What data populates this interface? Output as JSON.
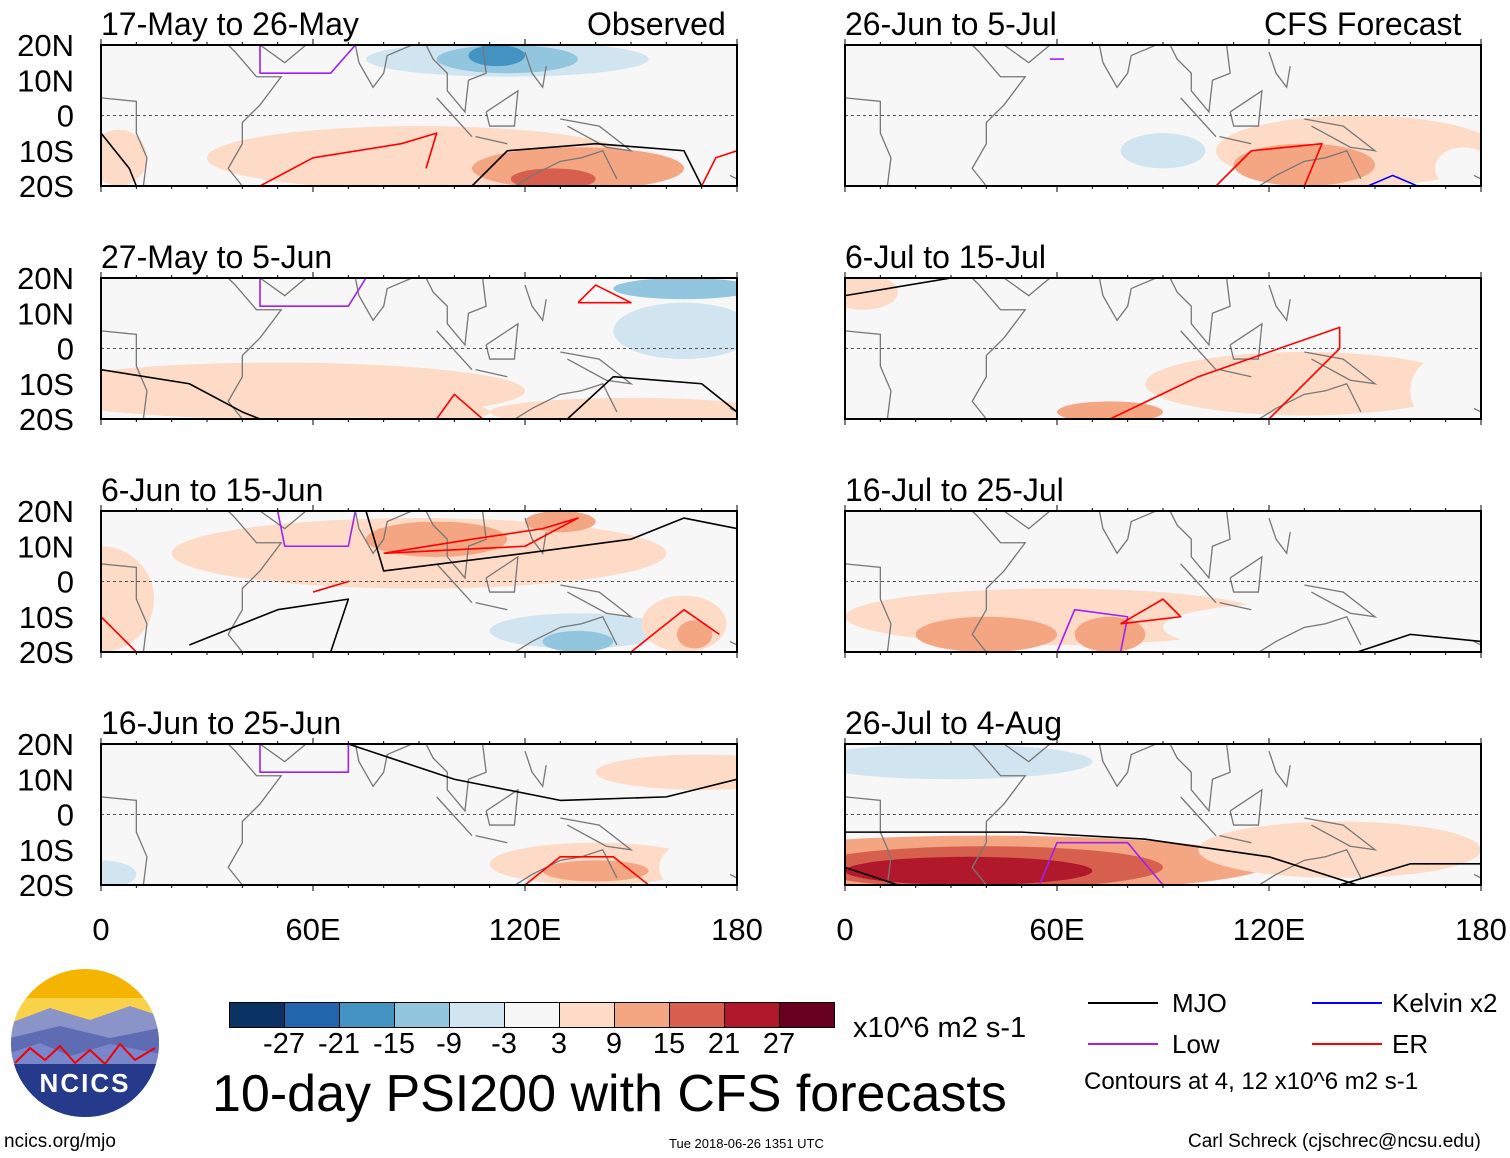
{
  "chart_data": {
    "type": "heatmap",
    "title": "10-day PSI200 with CFS forecasts",
    "units": "x10^6 m2 s-1",
    "xlim": [
      0,
      180
    ],
    "ylim": [
      -20,
      20
    ],
    "xticks": [
      "0",
      "60E",
      "120E",
      "180"
    ],
    "yticks": [
      "20N",
      "10N",
      "0",
      "10S",
      "20S"
    ],
    "levels": [
      -27,
      -21,
      -15,
      -9,
      -3,
      3,
      9,
      15,
      21,
      27
    ],
    "level_labels": [
      "-27",
      "-21",
      "-15",
      "-9",
      "-3",
      "3",
      "9",
      "15",
      "21",
      "27"
    ],
    "colors": [
      "#0a3263",
      "#2166ac",
      "#4393c3",
      "#92c5de",
      "#d1e5f0",
      "#f7f7f7",
      "#fddbc7",
      "#f4a582",
      "#d6604d",
      "#b2182b",
      "#67001f"
    ],
    "column_labels": [
      "Observed",
      "CFS Forecast"
    ],
    "panels": [
      {
        "title": "17-May to 26-May",
        "col": 0,
        "row": 0,
        "anoms": [
          [
            120,
            16,
            80,
            6,
            -3
          ],
          [
            115,
            16,
            40,
            5,
            -9
          ],
          [
            115,
            16,
            20,
            4,
            -15
          ],
          [
            112,
            17,
            8,
            3,
            -21
          ],
          [
            90,
            -12,
            60,
            9,
            3
          ],
          [
            135,
            -15,
            30,
            6,
            9
          ],
          [
            128,
            -18,
            12,
            3,
            15
          ],
          [
            5,
            -12,
            8,
            8,
            3
          ]
        ],
        "contours": [
          {
            "type": "ER",
            "pts": [
              [
                45,
                -20
              ],
              [
                60,
                -12
              ],
              [
                85,
                -8
              ],
              [
                95,
                -5
              ],
              [
                92,
                -15
              ]
            ]
          },
          {
            "type": "MJO",
            "pts": [
              [
                105,
                -20
              ],
              [
                115,
                -10
              ],
              [
                140,
                -8
              ],
              [
                165,
                -10
              ],
              [
                170,
                -20
              ]
            ]
          },
          {
            "type": "Low",
            "pts": [
              [
                45,
                20
              ],
              [
                45,
                12
              ],
              [
                65,
                12
              ],
              [
                72,
                20
              ]
            ]
          },
          {
            "type": "MJO",
            "pts": [
              [
                0,
                -5
              ],
              [
                8,
                -15
              ],
              [
                10,
                -20
              ]
            ]
          },
          {
            "type": "ER",
            "pts": [
              [
                170,
                -20
              ],
              [
                174,
                -12
              ],
              [
                180,
                -10
              ]
            ]
          }
        ]
      },
      {
        "title": "27-May to 5-Jun",
        "col": 0,
        "row": 1,
        "anoms": [
          [
            140,
            8,
            45,
            10,
            -3
          ],
          [
            165,
            5,
            20,
            8,
            -9
          ],
          [
            165,
            17,
            20,
            3,
            -15
          ],
          [
            50,
            -12,
            70,
            8,
            3
          ],
          [
            150,
            -18,
            40,
            4,
            3
          ],
          [
            90,
            -18,
            20,
            3,
            3
          ]
        ],
        "contours": [
          {
            "type": "MJO",
            "pts": [
              [
                0,
                -6
              ],
              [
                25,
                -10
              ],
              [
                40,
                -18
              ],
              [
                45,
                -20
              ]
            ]
          },
          {
            "type": "ER",
            "pts": [
              [
                95,
                -20
              ],
              [
                100,
                -13
              ],
              [
                108,
                -20
              ]
            ]
          },
          {
            "type": "MJO",
            "pts": [
              [
                132,
                -20
              ],
              [
                145,
                -8
              ],
              [
                170,
                -10
              ],
              [
                180,
                -18
              ]
            ]
          },
          {
            "type": "ER",
            "pts": [
              [
                135,
                13
              ],
              [
                140,
                18
              ],
              [
                150,
                13
              ],
              [
                135,
                13
              ]
            ]
          },
          {
            "type": "Low",
            "pts": [
              [
                45,
                20
              ],
              [
                45,
                12
              ],
              [
                70,
                12
              ],
              [
                75,
                20
              ]
            ]
          }
        ]
      },
      {
        "title": "6-Jun to 15-Jun",
        "col": 0,
        "row": 2,
        "anoms": [
          [
            90,
            8,
            70,
            10,
            3
          ],
          [
            95,
            12,
            20,
            5,
            9
          ],
          [
            130,
            17,
            10,
            3,
            9
          ],
          [
            0,
            -5,
            15,
            15,
            3
          ],
          [
            140,
            -12,
            40,
            8,
            -3
          ],
          [
            135,
            -14,
            25,
            5,
            -9
          ],
          [
            135,
            -17,
            10,
            3,
            -15
          ],
          [
            165,
            -12,
            12,
            8,
            3
          ],
          [
            168,
            -15,
            5,
            4,
            9
          ]
        ],
        "contours": [
          {
            "type": "MJO",
            "pts": [
              [
                75,
                20
              ],
              [
                80,
                3
              ],
              [
                120,
                8
              ],
              [
                150,
                12
              ],
              [
                165,
                18
              ],
              [
                180,
                15
              ]
            ]
          },
          {
            "type": "ER",
            "pts": [
              [
                80,
                8
              ],
              [
                105,
                12
              ],
              [
                125,
                15
              ],
              [
                135,
                18
              ],
              [
                120,
                10
              ],
              [
                80,
                8
              ]
            ]
          },
          {
            "type": "MJO",
            "pts": [
              [
                25,
                -18
              ],
              [
                50,
                -8
              ],
              [
                70,
                -5
              ],
              [
                65,
                -20
              ]
            ]
          },
          {
            "type": "Low",
            "pts": [
              [
                50,
                20
              ],
              [
                52,
                10
              ],
              [
                70,
                10
              ],
              [
                72,
                20
              ]
            ]
          },
          {
            "type": "ER",
            "pts": [
              [
                150,
                -20
              ],
              [
                165,
                -8
              ],
              [
                175,
                -15
              ]
            ]
          },
          {
            "type": "ER",
            "pts": [
              [
                60,
                -3
              ],
              [
                70,
                0
              ],
              [
                60,
                -3
              ]
            ]
          },
          {
            "type": "ER",
            "pts": [
              [
                0,
                -10
              ],
              [
                10,
                -20
              ]
            ]
          }
        ]
      },
      {
        "title": "16-Jun to 25-Jun",
        "col": 0,
        "row": 3,
        "anoms": [
          [
            10,
            -14,
            10,
            5,
            -3
          ],
          [
            0,
            -17,
            10,
            4,
            -9
          ],
          [
            140,
            -14,
            30,
            6,
            3
          ],
          [
            140,
            -16,
            15,
            3,
            9
          ],
          [
            170,
            -15,
            12,
            8,
            -3
          ],
          [
            170,
            12,
            30,
            5,
            3
          ]
        ],
        "contours": [
          {
            "type": "MJO",
            "pts": [
              [
                70,
                20
              ],
              [
                100,
                10
              ],
              [
                130,
                4
              ],
              [
                160,
                5
              ],
              [
                180,
                10
              ]
            ]
          },
          {
            "type": "Low",
            "pts": [
              [
                45,
                20
              ],
              [
                45,
                12
              ],
              [
                70,
                12
              ],
              [
                70,
                20
              ]
            ]
          },
          {
            "type": "ER",
            "pts": [
              [
                120,
                -20
              ],
              [
                130,
                -12
              ],
              [
                145,
                -12
              ],
              [
                155,
                -20
              ]
            ]
          }
        ]
      },
      {
        "title": "26-Jun to 5-Jul",
        "col": 1,
        "row": 0,
        "anoms": [
          [
            90,
            0,
            90,
            20,
            -3
          ],
          [
            90,
            -10,
            12,
            5,
            -9
          ],
          [
            145,
            -10,
            40,
            10,
            3
          ],
          [
            130,
            -14,
            20,
            6,
            9
          ],
          [
            175,
            -15,
            8,
            6,
            -3
          ]
        ],
        "contours": [
          {
            "type": "ER",
            "pts": [
              [
                105,
                -20
              ],
              [
                115,
                -10
              ],
              [
                135,
                -8
              ],
              [
                130,
                -20
              ]
            ]
          },
          {
            "type": "Kelvin",
            "pts": [
              [
                148,
                -20
              ],
              [
                155,
                -17
              ],
              [
                162,
                -20
              ]
            ]
          },
          {
            "type": "Low",
            "pts": [
              [
                58,
                16
              ],
              [
                62,
                16
              ]
            ]
          }
        ]
      },
      {
        "title": "6-Jul to 15-Jul",
        "col": 1,
        "row": 1,
        "anoms": [
          [
            40,
            0,
            60,
            20,
            -3
          ],
          [
            130,
            -10,
            45,
            9,
            3
          ],
          [
            75,
            -18,
            15,
            3,
            9
          ],
          [
            170,
            -12,
            10,
            10,
            -3
          ],
          [
            5,
            16,
            10,
            5,
            3
          ]
        ],
        "contours": [
          {
            "type": "MJO",
            "pts": [
              [
                0,
                15
              ],
              [
                30,
                20
              ],
              [
                60,
                20
              ]
            ]
          },
          {
            "type": "ER",
            "pts": [
              [
                75,
                -20
              ],
              [
                100,
                -8
              ],
              [
                140,
                6
              ],
              [
                140,
                0
              ],
              [
                120,
                -20
              ]
            ]
          }
        ]
      },
      {
        "title": "16-Jul to 25-Jul",
        "col": 1,
        "row": 2,
        "anoms": [
          [
            60,
            -10,
            60,
            8,
            3
          ],
          [
            40,
            -15,
            20,
            5,
            9
          ],
          [
            75,
            -15,
            10,
            5,
            9
          ],
          [
            130,
            -13,
            40,
            7,
            -3
          ],
          [
            100,
            15,
            60,
            6,
            -3
          ]
        ],
        "contours": [
          {
            "type": "Low",
            "pts": [
              [
                60,
                -20
              ],
              [
                65,
                -8
              ],
              [
                80,
                -10
              ],
              [
                78,
                -20
              ]
            ]
          },
          {
            "type": "ER",
            "pts": [
              [
                78,
                -12
              ],
              [
                90,
                -5
              ],
              [
                95,
                -10
              ],
              [
                78,
                -12
              ]
            ]
          },
          {
            "type": "MJO",
            "pts": [
              [
                145,
                -20
              ],
              [
                160,
                -15
              ],
              [
                180,
                -17
              ]
            ]
          }
        ]
      },
      {
        "title": "26-Jul to 4-Aug",
        "col": 1,
        "row": 3,
        "anoms": [
          [
            60,
            14,
            110,
            6,
            -3
          ],
          [
            30,
            15,
            40,
            5,
            -9
          ],
          [
            40,
            -14,
            80,
            8,
            9
          ],
          [
            40,
            -15,
            50,
            6,
            15
          ],
          [
            35,
            -16,
            35,
            4,
            21
          ],
          [
            140,
            -10,
            40,
            8,
            3
          ]
        ],
        "contours": [
          {
            "type": "MJO",
            "pts": [
              [
                0,
                -5
              ],
              [
                50,
                -5
              ],
              [
                85,
                -7
              ],
              [
                120,
                -12
              ],
              [
                145,
                -20
              ]
            ]
          },
          {
            "type": "Low",
            "pts": [
              [
                55,
                -20
              ],
              [
                60,
                -8
              ],
              [
                80,
                -8
              ],
              [
                90,
                -20
              ]
            ]
          },
          {
            "type": "MJO",
            "pts": [
              [
                0,
                -15
              ],
              [
                15,
                -20
              ]
            ]
          },
          {
            "type": "MJO",
            "pts": [
              [
                140,
                -20
              ],
              [
                160,
                -14
              ],
              [
                180,
                -14
              ]
            ]
          }
        ]
      }
    ]
  },
  "legend": {
    "items": [
      {
        "label": "MJO",
        "color": "#000000"
      },
      {
        "label": "Kelvin x2",
        "color": "#0000ff"
      },
      {
        "label": "Low",
        "color": "#a020f0"
      },
      {
        "label": "ER",
        "color": "#ff0000"
      }
    ],
    "note": "Contours at 4, 12 x10^6 m2 s-1"
  },
  "logo": {
    "text": "NCICS"
  },
  "footer": {
    "left": "ncics.org/mjo",
    "center": "Tue 2018-06-26 1351 UTC",
    "right": "Carl Schreck (cjschrec@ncsu.edu)"
  }
}
